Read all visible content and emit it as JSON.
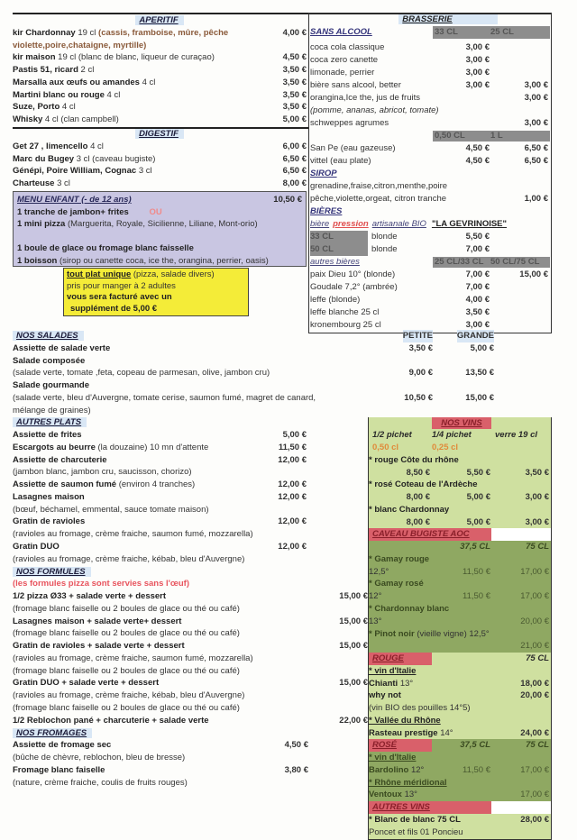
{
  "aperitif": {
    "title": "APERITIF",
    "items": [
      {
        "name": "kir Chardonnay",
        "desc": "19 cl",
        "note": "(cassis, framboise, mûre, pêche",
        "prices": [
          "4,00 €"
        ]
      },
      {
        "note": "violette,poire,chataigne, myrtille)"
      },
      {
        "name": "kir maison",
        "desc": "19 cl (blanc de blanc, liqueur de curaçao)",
        "prices": [
          "4,50 €"
        ]
      },
      {
        "name": "Pastis 51, ricard",
        "desc": "2 cl",
        "prices": [
          "3,50 €"
        ]
      },
      {
        "name": "Marsalla aux œufs ou amandes",
        "desc": "4 cl",
        "prices": [
          "3,50 €"
        ]
      },
      {
        "name": "Martini blanc ou rouge",
        "desc": "4 cl",
        "prices": [
          "3,50 €"
        ]
      },
      {
        "name": "Suze, Porto",
        "desc": "4 cl",
        "prices": [
          "3,50 €"
        ]
      },
      {
        "name": "Whisky",
        "desc": "4 cl (clan campbell)",
        "prices": [
          "5,00 €"
        ]
      }
    ]
  },
  "digestif": {
    "title": "DIGESTIF",
    "items": [
      {
        "name": "Get 27 , limencello",
        "desc": "4 cl",
        "prices": [
          "6,00 €"
        ]
      },
      {
        "name": "Marc du Bugey",
        "desc": "3 cl (caveau bugiste)",
        "prices": [
          "6,50 €"
        ]
      },
      {
        "name": "Génépi, Poire William, Cognac",
        "desc": "3 cl",
        "prices": [
          "6,50 €"
        ]
      },
      {
        "name": "Charteuse",
        "desc": "3 cl",
        "prices": [
          "8,00 €"
        ]
      }
    ]
  },
  "menu_enfant": {
    "title": "MENU ENFANT (- de 12 ans)",
    "price": "10,50 €",
    "items": [
      {
        "name": "1 tranche de jambon+ frites",
        "note": "OU"
      },
      {
        "name": "1 mini pizza",
        "desc": "(Marguerita, Royale, Sicilienne, Liliane, Mont-orio)"
      },
      {},
      {
        "name": "1 boule de glace ou fromage blanc faisselle"
      },
      {
        "name": "1 boisson",
        "desc": "(sirop ou canette coca, ice the, orangina, perrier, oasis)"
      }
    ]
  },
  "supplement_notice": {
    "lead": "tout plat unique",
    "lead_rest": "(pizza, salade divers)",
    "line2": "pris pour manger à 2 adultes",
    "line3": "vous sera facturé avec un",
    "line4": "supplément de 5,00 €"
  },
  "brasserie": {
    "title": "BRASSERIE",
    "rows": [
      {
        "type": "size-header",
        "name": "SANS ALCOOL",
        "sizes": [
          "33 CL",
          "25 CL"
        ]
      },
      {
        "desc": "coca cola classique",
        "prices": [
          "3,00 €",
          ""
        ]
      },
      {
        "desc": "coca zero canette",
        "prices": [
          "3,00 €",
          ""
        ]
      },
      {
        "desc": "limonade, perrier",
        "prices": [
          "3,00 €",
          ""
        ]
      },
      {
        "desc": "bière sans alcool, better",
        "prices": [
          "3,00 €",
          "3,00 €"
        ]
      },
      {
        "desc": "orangina,Ice the, jus de fruits",
        "prices": [
          "",
          "3,00 €"
        ]
      },
      {
        "aside": "(pomme, ananas, abricot, tomate)"
      },
      {
        "desc": "schweppes agrumes",
        "prices": [
          "",
          "3,00 €"
        ]
      },
      {
        "type": "size-header",
        "sizes": [
          "0,50 CL",
          "1 L"
        ]
      },
      {
        "desc": "San Pe (eau gazeuse)",
        "prices": [
          "4,50 €",
          "6,50 €"
        ]
      },
      {
        "desc": "vittel (eau plate)",
        "prices": [
          "4,50 €",
          "6,50 €"
        ]
      },
      {
        "type": "subhead",
        "name": "SIROP"
      },
      {
        "desc": "grenadine,fraise,citron,menthe,poire"
      },
      {
        "desc": "pêche,violette,orgeat, citron tranche",
        "prices": [
          "",
          "1,00 €"
        ]
      },
      {
        "type": "subhead",
        "name": "BIÈRES"
      },
      {
        "type": "pression",
        "parts": [
          "bière",
          "pression",
          "artisanale BIO",
          "\"LA GEVRINOISE\""
        ]
      },
      {
        "type": "tap",
        "size": "33 CL",
        "desc": "blonde",
        "prices": [
          "5,50 €",
          ""
        ]
      },
      {
        "type": "tap",
        "size": "50 CL",
        "desc": "blonde",
        "prices": [
          "7,00 €",
          ""
        ]
      },
      {
        "type": "size-header",
        "name": "autres bières",
        "sizes": [
          "25 CL/33 CL",
          "50 CL/75 CL"
        ]
      },
      {
        "desc": "paix Dieu 10° (blonde)",
        "prices": [
          "7,00 €",
          "15,00 €"
        ]
      },
      {
        "desc": "Goudale 7,2° (ambrée)",
        "prices": [
          "7,00 €",
          ""
        ]
      },
      {
        "desc": "leffe (blonde)",
        "prices": [
          "4,00 €",
          ""
        ]
      },
      {
        "desc": "leffe blanche 25 cl",
        "prices": [
          "3,50 €",
          ""
        ]
      },
      {
        "desc": "kronembourg 25 cl",
        "prices": [
          "3,00 €",
          ""
        ]
      }
    ]
  },
  "salades": [
    {
      "header": "NOS SALADES",
      "cols": [
        "PETITE",
        "GRANDE"
      ]
    },
    {
      "name": "Assiette de salade verte",
      "prices": [
        "3,50 €",
        "5,00 €"
      ]
    },
    {
      "name": "Salade composée"
    },
    {
      "desc": "(salade verte, tomate ,feta, copeau de parmesan, olive, jambon cru)",
      "prices": [
        "9,00 €",
        "13,50 €"
      ]
    },
    {
      "name": "Salade gourmande"
    },
    {
      "desc": "(salade verte, bleu d'Auvergne, tomate cerise, saumon fumé, magret de canard,",
      "prices": [
        "10,50 €",
        "15,00 €"
      ]
    },
    {
      "desc": "mélange de graines)"
    }
  ],
  "autres_plats": [
    {
      "header": "AUTRES PLATS"
    },
    {
      "name": "Assiette de frites",
      "prices": [
        "5,00 €"
      ]
    },
    {
      "name": "Escargots au beurre",
      "desc": "(la douzaine) 10 mn d'attente",
      "prices": [
        "11,50 €"
      ]
    },
    {
      "name": "Assiette de charcuterie",
      "prices": [
        "12,00 €"
      ]
    },
    {
      "desc": "(jambon blanc, jambon cru, saucisson, chorizo)"
    },
    {
      "name": "Assiette de saumon fumé",
      "desc": "(environ 4 tranches)",
      "prices": [
        "12,00 €"
      ]
    },
    {
      "name": "Lasagnes maison",
      "prices": [
        "12,00 €"
      ]
    },
    {
      "desc": "(bœuf, béchamel, emmental, sauce tomate maison)"
    },
    {
      "name": "Gratin de ravioles",
      "prices": [
        "12,00 €"
      ]
    },
    {
      "desc": "(ravioles au fromage, crème fraiche, saumon fumé, mozzarella)"
    },
    {
      "name": "Gratin DUO",
      "prices": [
        "12,00 €"
      ]
    },
    {
      "desc": "(ravioles au fromage, crème fraiche, kébab, bleu d'Auvergne)"
    }
  ],
  "formules": [
    {
      "header": "NOS FORMULES"
    },
    {
      "type": "red",
      "desc": "(les formules pizza sont servies sans l'œuf)"
    },
    {
      "name": "1/2 pizza Ø33 + salade verte + dessert",
      "prices": [
        "15,00 €"
      ]
    },
    {
      "desc": "(fromage blanc faiselle ou 2 boules de glace ou thé ou café)"
    },
    {
      "name": "Lasagnes maison + salade verte+ dessert",
      "prices": [
        "15,00 €"
      ]
    },
    {
      "desc": "(fromage blanc faiselle ou 2 boules de glace ou thé ou café)"
    },
    {
      "name": "Gratin de ravioles  + salade verte + dessert",
      "prices": [
        "15,00 €"
      ]
    },
    {
      "desc": "(ravioles au fromage, crème fraiche, saumon fumé, mozzarella)"
    },
    {
      "desc": "(fromage blanc faiselle ou 2 boules de glace ou thé ou café)"
    },
    {
      "name": "Gratin DUO + salade verte + dessert",
      "prices": [
        "15,00 €"
      ]
    },
    {
      "desc": "(ravioles au fromage, crème fraiche, kébab, bleu d'Auvergne)"
    },
    {
      "desc": "(fromage blanc faiselle ou 2 boules de glace ou thé ou café)"
    },
    {
      "name": "1/2 Reblochon pané + charcuterie + salade verte",
      "prices": [
        "22,00 €"
      ]
    }
  ],
  "fromages": [
    {
      "header": "NOS FROMAGES"
    },
    {
      "name": "Assiette de fromage sec",
      "prices": [
        "4,50 €"
      ]
    },
    {
      "desc": "(bûche de chèvre, reblochon, bleu de bresse)"
    },
    {
      "name": "Fromage blanc faiselle",
      "prices": [
        "3,80 €"
      ]
    },
    {
      "desc": "(nature, crème fraiche, coulis de fruits rouges)"
    }
  ],
  "wines": {
    "nos_vins": [
      {
        "type": "whdr",
        "header": "NOS VINS"
      },
      {
        "type": "wcols",
        "cols": [
          "1/2 pichet",
          "1/4 pichet",
          "verre 19 cl"
        ]
      },
      {
        "type": "wvol",
        "cols": [
          "0,50 cl",
          "0,25 cl",
          ""
        ]
      },
      {
        "name": "* rouge Côte du rhône"
      },
      {
        "prices": [
          "8,50 €",
          "5,50 €",
          "3,50 €"
        ]
      },
      {
        "name": "* rosé Coteau de l'Ardèche"
      },
      {
        "prices": [
          "8,00 €",
          "5,00 €",
          "3,00 €"
        ]
      },
      {
        "name": "* blanc Chardonnay"
      },
      {
        "prices": [
          "8,00 €",
          "5,00 €",
          "3,00 €"
        ]
      }
    ],
    "caveau": [
      {
        "type": "whdr",
        "header": "CAVEAU BUGISTE AOC"
      },
      {
        "type": "wcols",
        "cols": [
          "37,5 CL",
          "75 CL"
        ]
      },
      {
        "name": "* Gamay rouge"
      },
      {
        "desc": "12,5°",
        "prices": [
          "11,50 €",
          "17,00 €"
        ]
      },
      {
        "name": "* Gamay rosé"
      },
      {
        "desc": "12°",
        "prices": [
          "11,50 €",
          "17,00 €"
        ]
      },
      {
        "name": "* Chardonnay blanc"
      },
      {
        "desc": "13°",
        "prices": [
          "",
          "20,00 €"
        ]
      },
      {
        "name": "* Pinot noir",
        "desc": "(vieille vigne) 12,5°"
      },
      {
        "prices": [
          "",
          "21,00 €"
        ]
      }
    ],
    "rouge": [
      {
        "type": "whdr",
        "header": "ROUGE",
        "cols": [
          "75 CL"
        ]
      },
      {
        "type": "sub",
        "name": "* vin d'Italie"
      },
      {
        "name": "Chianti",
        "desc": "13°",
        "prices": [
          "18,00 €"
        ]
      },
      {
        "name": "why not",
        "prices": [
          "20,00 €"
        ]
      },
      {
        "desc": "(vin BIO des pouilles 14°5)"
      },
      {
        "type": "sub",
        "name": "* Vallée du Rhône"
      },
      {
        "name": "Rasteau prestige",
        "desc": "14°",
        "prices": [
          "24,00 €"
        ]
      }
    ],
    "rose": [
      {
        "type": "whdr",
        "header": "ROSÉ",
        "cols": [
          "37,5 CL",
          "75 CL"
        ]
      },
      {
        "type": "sub",
        "name": "* vin d'Italie"
      },
      {
        "name": "Bardolino",
        "desc": "12°",
        "prices": [
          "11,50 €",
          "17,00 €"
        ]
      },
      {
        "type": "sub",
        "name": "* Rhône méridional"
      },
      {
        "name": "Ventoux",
        "desc": "13°",
        "prices": [
          "",
          "17,00 €"
        ]
      }
    ],
    "autres": [
      {
        "type": "whdr",
        "header": "AUTRES VINS"
      },
      {
        "name": "* Blanc de blanc 75 CL",
        "prices": [
          "28,00 €"
        ]
      },
      {
        "desc": "Poncet et fils 01 Poncieu"
      }
    ]
  },
  "colors": {
    "enfant_bg": "#c9c6e2",
    "notice_bg": "#f4ec38",
    "wine_light": "#cfe0a0",
    "wine_dark": "#8fa862",
    "wine_header": "#d9606a",
    "size_band": "#8d8d8d"
  }
}
